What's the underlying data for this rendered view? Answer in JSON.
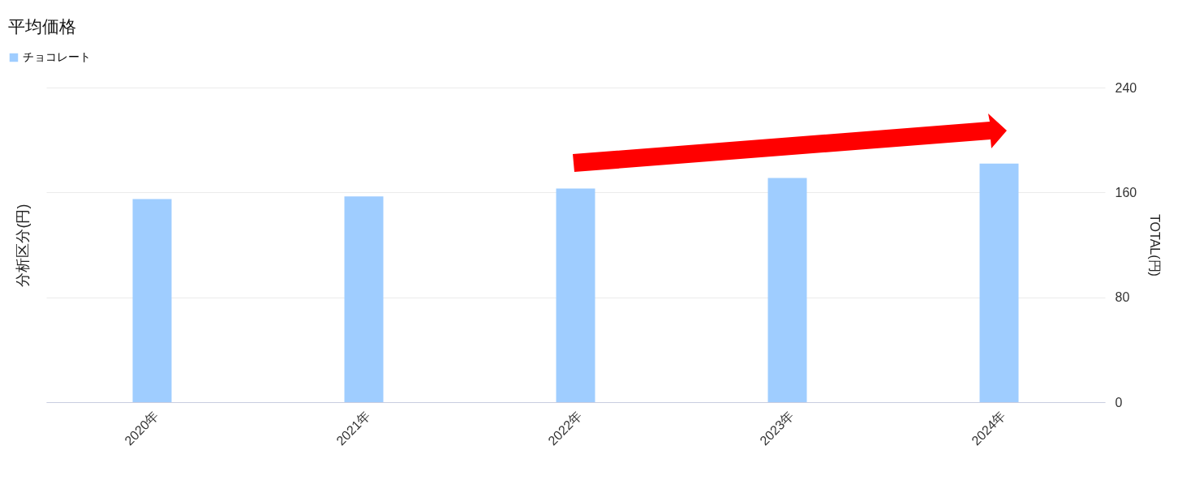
{
  "chart_data": {
    "type": "bar",
    "title": "平均価格",
    "ylabel": "分析区分(円)",
    "y2label": "TOTAL(円)",
    "categories": [
      "2020年",
      "2021年",
      "2022年",
      "2023年",
      "2024年"
    ],
    "series": [
      {
        "name": "チョコレート",
        "color": "#9fcdff",
        "axis": "y2",
        "values": [
          155,
          157,
          163,
          171,
          182
        ]
      }
    ],
    "y2lim": [
      0,
      240
    ],
    "y2ticks": [
      0,
      80,
      160,
      240
    ],
    "grid": "y",
    "legend": "top left"
  }
}
